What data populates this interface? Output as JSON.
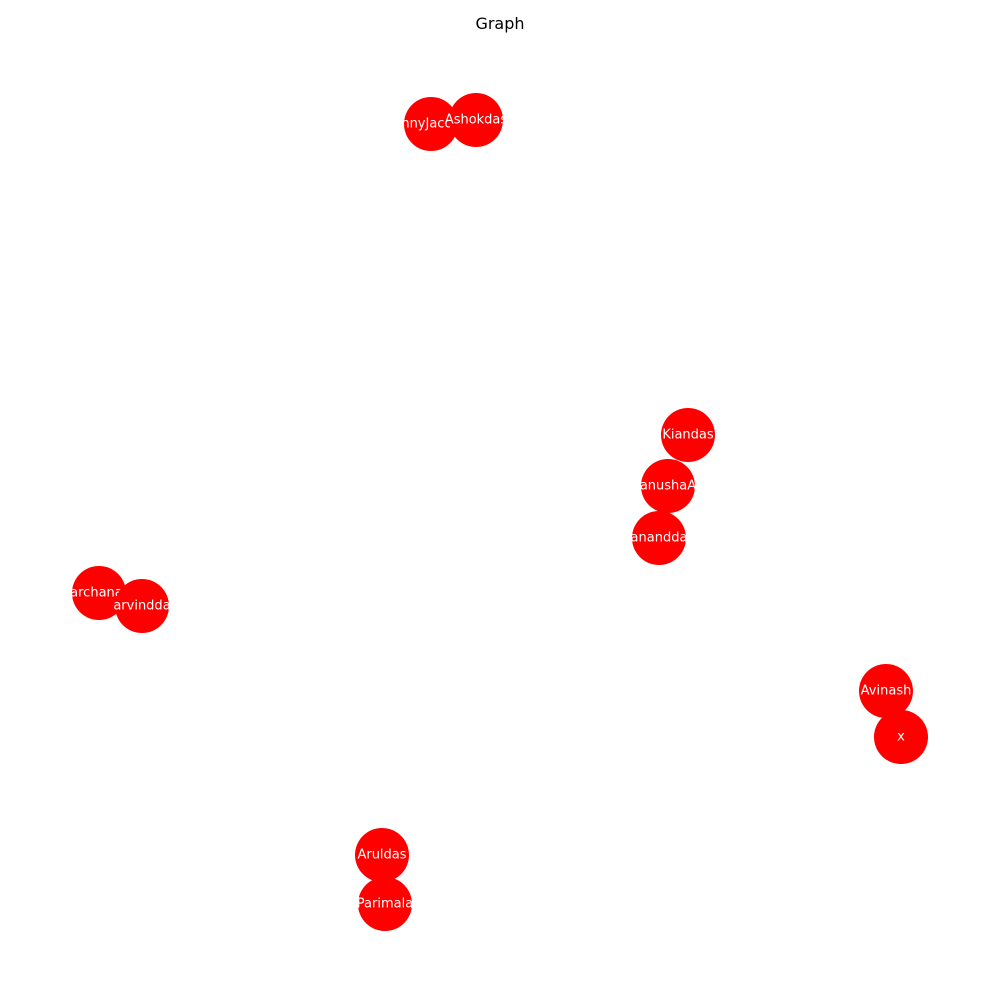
{
  "title": "Graph",
  "colors": {
    "node_fill": "#ff0000",
    "label_text": "#ffffff",
    "background": "#ffffff"
  },
  "nodes": [
    {
      "label": "nnyJacob"
    },
    {
      "label": "Ashokdas"
    },
    {
      "label": "Kiandas"
    },
    {
      "label": "anushaA"
    },
    {
      "label": "anandda"
    },
    {
      "label": "archanat"
    },
    {
      "label": "arvindda"
    },
    {
      "label": "Avinash"
    },
    {
      "label": "x"
    },
    {
      "label": "Aruldas"
    },
    {
      "label": "Parimala"
    }
  ]
}
